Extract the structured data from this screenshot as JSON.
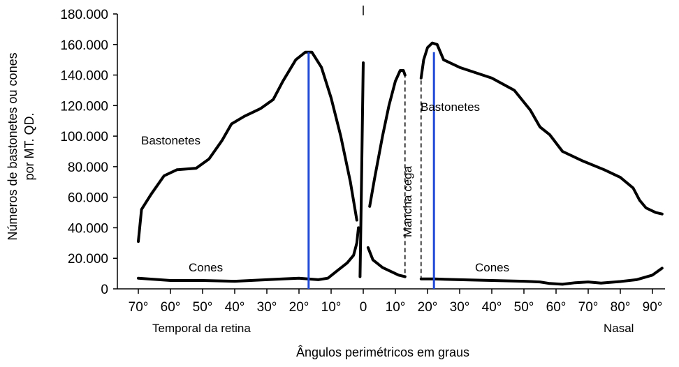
{
  "chart_data": {
    "type": "line",
    "ylabel_line1": "Números de bastonetes ou cones",
    "ylabel_line2": "por MT. QD.",
    "xlabel": "Ângulos perimétricos em graus",
    "ylim": [
      0,
      180000
    ],
    "y_ticks": [
      {
        "value": 0,
        "label": "0"
      },
      {
        "value": 20000,
        "label": "20.000"
      },
      {
        "value": 40000,
        "label": "40.000"
      },
      {
        "value": 60000,
        "label": "60.000"
      },
      {
        "value": 80000,
        "label": "80.000"
      },
      {
        "value": 100000,
        "label": "100.000"
      },
      {
        "value": 120000,
        "label": "120.000"
      },
      {
        "value": 140000,
        "label": "140.000"
      },
      {
        "value": 160000,
        "label": "160.000"
      },
      {
        "value": 180000,
        "label": "180.000"
      }
    ],
    "x_ticks": [
      {
        "value": -70,
        "label": "70°"
      },
      {
        "value": -60,
        "label": "60°"
      },
      {
        "value": -50,
        "label": "50°"
      },
      {
        "value": -40,
        "label": "40°"
      },
      {
        "value": -30,
        "label": "30°"
      },
      {
        "value": -20,
        "label": "20°"
      },
      {
        "value": -10,
        "label": "10°"
      },
      {
        "value": 0,
        "label": "0"
      },
      {
        "value": 10,
        "label": "10°"
      },
      {
        "value": 20,
        "label": "20°"
      },
      {
        "value": 30,
        "label": "30°"
      },
      {
        "value": 40,
        "label": "40°"
      },
      {
        "value": 50,
        "label": "50°"
      },
      {
        "value": 60,
        "label": "60°"
      },
      {
        "value": 70,
        "label": "70°"
      },
      {
        "value": 80,
        "label": "80°"
      },
      {
        "value": 90,
        "label": "90°"
      }
    ],
    "side_labels": {
      "left": "Temporal da retina",
      "right": "Nasal"
    },
    "annotations": {
      "rods_left": "Bastonetes",
      "rods_right": "Bastonetes",
      "cones_left": "Cones",
      "cones_right": "Cones",
      "blind_spot": "Mancha cega"
    },
    "blind_spot_range": [
      13,
      18
    ],
    "peak_markers": [
      -17,
      22
    ],
    "marker_color": "#1f49d6",
    "series": [
      {
        "segments": [
          [
            [
              -70,
              31000
            ],
            [
              -69,
              52000
            ],
            [
              -66,
              62000
            ],
            [
              -62,
              74000
            ],
            [
              -58,
              78000
            ],
            [
              -52,
              79000
            ],
            [
              -48,
              85000
            ],
            [
              -44,
              97000
            ],
            [
              -41,
              108000
            ],
            [
              -37,
              113000
            ],
            [
              -32,
              118000
            ],
            [
              -28,
              124000
            ],
            [
              -25,
              136000
            ],
            [
              -21,
              150000
            ],
            [
              -18,
              155000
            ],
            [
              -16,
              155000
            ],
            [
              -13,
              145000
            ],
            [
              -10,
              125000
            ],
            [
              -7,
              100000
            ],
            [
              -4,
              70000
            ],
            [
              -2,
              45000
            ]
          ],
          [
            [
              -1,
              8000
            ],
            [
              -0.6,
              60000
            ],
            [
              -0.2,
              120000
            ],
            [
              0,
              148000
            ]
          ],
          [
            [
              2,
              54000
            ],
            [
              3.5,
              72000
            ],
            [
              6,
              100000
            ],
            [
              8,
              120000
            ],
            [
              10,
              136000
            ],
            [
              11.5,
              143000
            ],
            [
              12.5,
              143000
            ],
            [
              13,
              140000
            ]
          ],
          [
            [
              18,
              138000
            ],
            [
              18.8,
              150000
            ],
            [
              20,
              158000
            ],
            [
              21.5,
              161000
            ],
            [
              23,
              160000
            ],
            [
              25,
              150000
            ],
            [
              30,
              145000
            ],
            [
              40,
              138000
            ],
            [
              47,
              130000
            ],
            [
              52,
              117000
            ],
            [
              55,
              106000
            ],
            [
              58,
              101000
            ],
            [
              62,
              90000
            ],
            [
              68,
              84000
            ],
            [
              75,
              78000
            ],
            [
              80,
              73000
            ],
            [
              84,
              66000
            ],
            [
              86,
              58000
            ],
            [
              88,
              53000
            ],
            [
              91,
              50000
            ],
            [
              93,
              49000
            ]
          ]
        ]
      },
      {
        "segments": [
          [
            [
              -70,
              7000
            ],
            [
              -60,
              5500
            ],
            [
              -50,
              5500
            ],
            [
              -40,
              5000
            ],
            [
              -30,
              6000
            ],
            [
              -25,
              6500
            ],
            [
              -20,
              7000
            ],
            [
              -14,
              6000
            ],
            [
              -11,
              7000
            ],
            [
              -8,
              12000
            ],
            [
              -5,
              17000
            ],
            [
              -3,
              22000
            ],
            [
              -2,
              30000
            ],
            [
              -1.5,
              40000
            ]
          ],
          [
            [
              1.5,
              27000
            ],
            [
              3,
              19000
            ],
            [
              6,
              14000
            ],
            [
              9,
              11000
            ],
            [
              11,
              9000
            ],
            [
              13,
              8000
            ]
          ],
          [
            [
              18,
              6500
            ],
            [
              22,
              6500
            ],
            [
              30,
              6000
            ],
            [
              40,
              5500
            ],
            [
              50,
              5000
            ],
            [
              55,
              4500
            ],
            [
              58,
              3500
            ],
            [
              62,
              3000
            ],
            [
              66,
              4000
            ],
            [
              70,
              4500
            ],
            [
              74,
              3800
            ],
            [
              80,
              4800
            ],
            [
              85,
              6000
            ],
            [
              90,
              9000
            ],
            [
              93,
              13500
            ]
          ]
        ]
      }
    ]
  }
}
